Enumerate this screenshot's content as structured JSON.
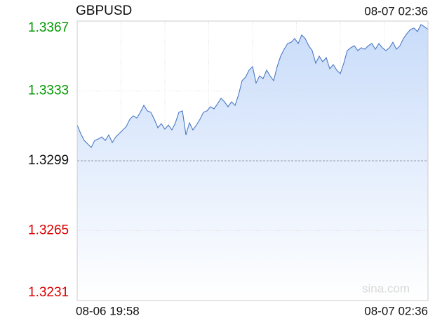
{
  "chart_data": {
    "type": "line",
    "title": "GBPUSD",
    "time": "08-07 02:36",
    "start_label": "08-06 19:58",
    "end_label": "08-07 02:36",
    "watermark": "sina.com",
    "ylim": [
      1.3231,
      1.3367
    ],
    "yticks": [
      1.3231,
      1.3265,
      1.3299,
      1.3333,
      1.3367
    ],
    "prev_close": 1.3299,
    "up_color": "#009900",
    "down_color": "#dd0000",
    "color": "#4a78c4",
    "grid": true,
    "values": [
      1.33164,
      1.33123,
      1.33089,
      1.33072,
      1.33055,
      1.33089,
      1.33096,
      1.33106,
      1.33089,
      1.33116,
      1.33079,
      1.33106,
      1.33123,
      1.3314,
      1.33157,
      1.33192,
      1.33209,
      1.33198,
      1.33226,
      1.3326,
      1.33233,
      1.33226,
      1.33192,
      1.33151,
      1.33171,
      1.33144,
      1.33164,
      1.3314,
      1.33175,
      1.33226,
      1.33233,
      1.33116,
      1.33175,
      1.3314,
      1.33164,
      1.33192,
      1.33226,
      1.33233,
      1.33253,
      1.33243,
      1.33267,
      1.33294,
      1.33277,
      1.33253,
      1.33277,
      1.3326,
      1.33311,
      1.3338,
      1.33397,
      1.33431,
      1.33448,
      1.33369,
      1.33403,
      1.3339,
      1.33431,
      1.33403,
      1.3338,
      1.33448,
      1.33499,
      1.33533,
      1.33561,
      1.33567,
      1.33585,
      1.33561,
      1.33602,
      1.33585,
      1.3355,
      1.33526,
      1.33465,
      1.33499,
      1.33472,
      1.33492,
      1.33438,
      1.33458,
      1.33431,
      1.33414,
      1.33465,
      1.33526,
      1.3354,
      1.3355,
      1.33526,
      1.3354,
      1.33533,
      1.3355,
      1.33561,
      1.33533,
      1.33561,
      1.3354,
      1.33526,
      1.3354,
      1.33567,
      1.33533,
      1.3355,
      1.33585,
      1.33609,
      1.33629,
      1.33636,
      1.33619,
      1.33653,
      1.33643,
      1.33629
    ]
  }
}
